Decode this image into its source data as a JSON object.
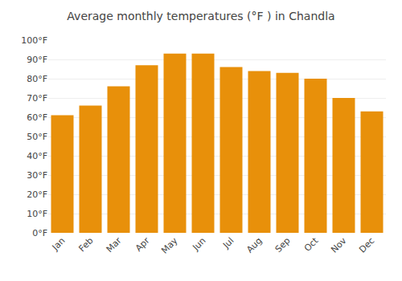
{
  "chart_data": {
    "type": "bar",
    "title": "Average monthly temperatures (°F ) in Chandla",
    "categories": [
      "Jan",
      "Feb",
      "Mar",
      "Apr",
      "May",
      "Jun",
      "Jul",
      "Aug",
      "Sep",
      "Oct",
      "Nov",
      "Dec"
    ],
    "values": [
      61,
      66,
      76,
      87,
      93,
      93,
      86,
      84,
      83,
      80,
      70,
      63
    ],
    "color": "#E8900A",
    "ylim": [
      0,
      100
    ],
    "yticks": [
      {
        "value": 0,
        "label": "0°F"
      },
      {
        "value": 10,
        "label": "10°F"
      },
      {
        "value": 20,
        "label": "20°F"
      },
      {
        "value": 30,
        "label": "30°F"
      },
      {
        "value": 40,
        "label": "40°F"
      },
      {
        "value": 50,
        "label": "50°F"
      },
      {
        "value": 60,
        "label": "60°F"
      },
      {
        "value": 70,
        "label": "70°F"
      },
      {
        "value": 80,
        "label": "80°F"
      },
      {
        "value": 90,
        "label": "90°F"
      },
      {
        "value": 100,
        "label": "100°F"
      }
    ],
    "grid": true
  }
}
